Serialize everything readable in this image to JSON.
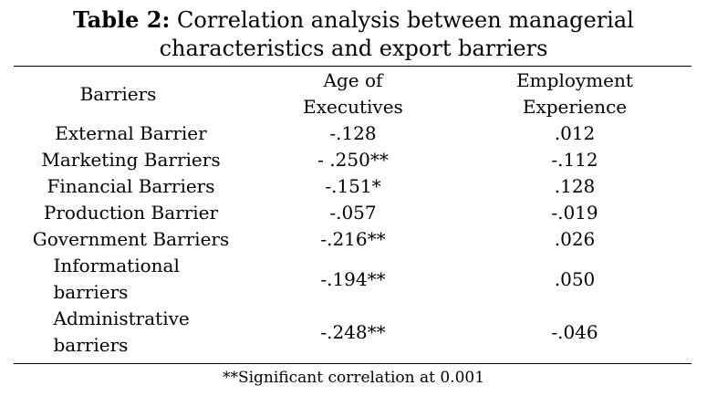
{
  "caption": {
    "label": "Table 2:",
    "line1": "Correlation analysis between managerial",
    "line2": "characteristics and export barriers"
  },
  "table": {
    "headers": {
      "barriers": "Barriers",
      "age_line1": "Age of",
      "age_line2": "Executives",
      "emp_line1": "Employment",
      "emp_line2": "Experience"
    },
    "rows": [
      {
        "barrier": "External Barrier",
        "age": "-.128",
        "employment": ".012"
      },
      {
        "barrier": "Marketing Barriers",
        "age": "- .250**",
        "employment": "-.112"
      },
      {
        "barrier": "Financial Barriers",
        "age": "-.151*",
        "employment": ".128"
      },
      {
        "barrier": "Production Barrier",
        "age": "-.057",
        "employment": "-.019"
      },
      {
        "barrier": "Government Barriers",
        "age": "-.216**",
        "employment": ".026"
      },
      {
        "barrier_line1": "Informational",
        "barrier_line2": "barriers",
        "age": "-.194**",
        "employment": ".050"
      },
      {
        "barrier_line1": "Administrative",
        "barrier_line2": "barriers",
        "age": "-.248**",
        "employment": "-.046"
      }
    ]
  },
  "footnote": "**Significant correlation at 0.001"
}
